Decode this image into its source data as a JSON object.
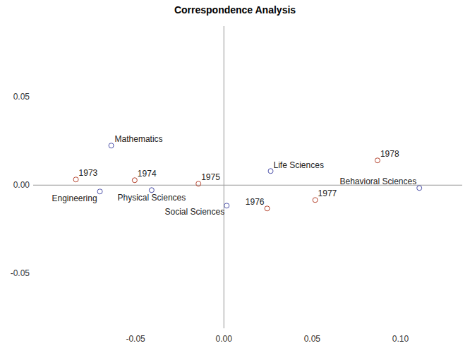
{
  "chart_data": {
    "type": "scatter",
    "title": "Correspondence Analysis",
    "xlim": [
      -0.108,
      0.135
    ],
    "ylim": [
      -0.081,
      0.09
    ],
    "xticks": [
      -0.05,
      {
        "value": 0,
        "label": "0.00"
      },
      0.05,
      {
        "value": 0.1,
        "label": "0.10"
      }
    ],
    "yticks": [
      0.05,
      {
        "value": 0,
        "label": "0.00"
      },
      -0.05
    ],
    "grid": false,
    "series": [
      {
        "color": "#4a4fa8",
        "marker": "circle",
        "labels": [
          "Mathematics",
          "Engineering",
          "Physical Sciences",
          "Social Sciences",
          "Life Sciences",
          "Behavioral Sciences"
        ],
        "x": [
          -0.0638,
          -0.0702,
          -0.0409,
          0.0016,
          0.0265,
          0.1107
        ],
        "values": [
          0.0224,
          -0.0036,
          -0.0028,
          -0.0116,
          0.008,
          -0.0016
        ]
      },
      {
        "color": "#b5442f",
        "marker": "circle",
        "labels": [
          "1973",
          "1974",
          "1975",
          "1976",
          "1977",
          "1978"
        ],
        "x": [
          -0.0838,
          -0.0505,
          -0.0144,
          0.0245,
          0.0517,
          0.087
        ],
        "values": [
          0.0032,
          0.0028,
          0.0008,
          -0.0132,
          -0.0084,
          0.014
        ]
      }
    ]
  }
}
